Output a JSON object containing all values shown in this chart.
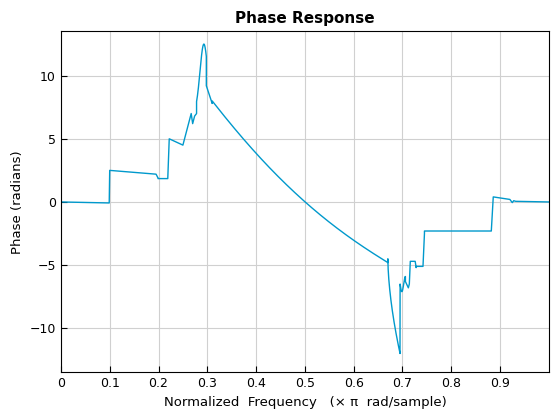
{
  "title": "Phase Response",
  "xlabel": "Normalized  Frequency   (× π  rad/sample)",
  "ylabel": "Phase (radians)",
  "line_color": "#0099CC",
  "line_width": 1.0,
  "xlim": [
    0,
    1.0
  ],
  "ylim": [
    -13.5,
    13.5
  ],
  "xticks": [
    0,
    0.1,
    0.2,
    0.3,
    0.4,
    0.5,
    0.6,
    0.7,
    0.8,
    0.9
  ],
  "yticks": [
    -10,
    -5,
    0,
    5,
    10
  ],
  "grid": true,
  "background_color": "#ffffff",
  "title_fontsize": 11,
  "label_fontsize": 9.5
}
